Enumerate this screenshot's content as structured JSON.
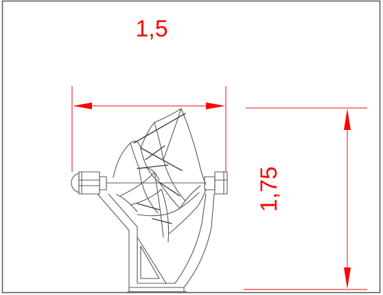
{
  "dimensions": {
    "width_label": "1,5",
    "height_label": "1,75"
  },
  "colors": {
    "dimension": "#ff0000",
    "outline": "#555555",
    "background": "#ffffff"
  }
}
